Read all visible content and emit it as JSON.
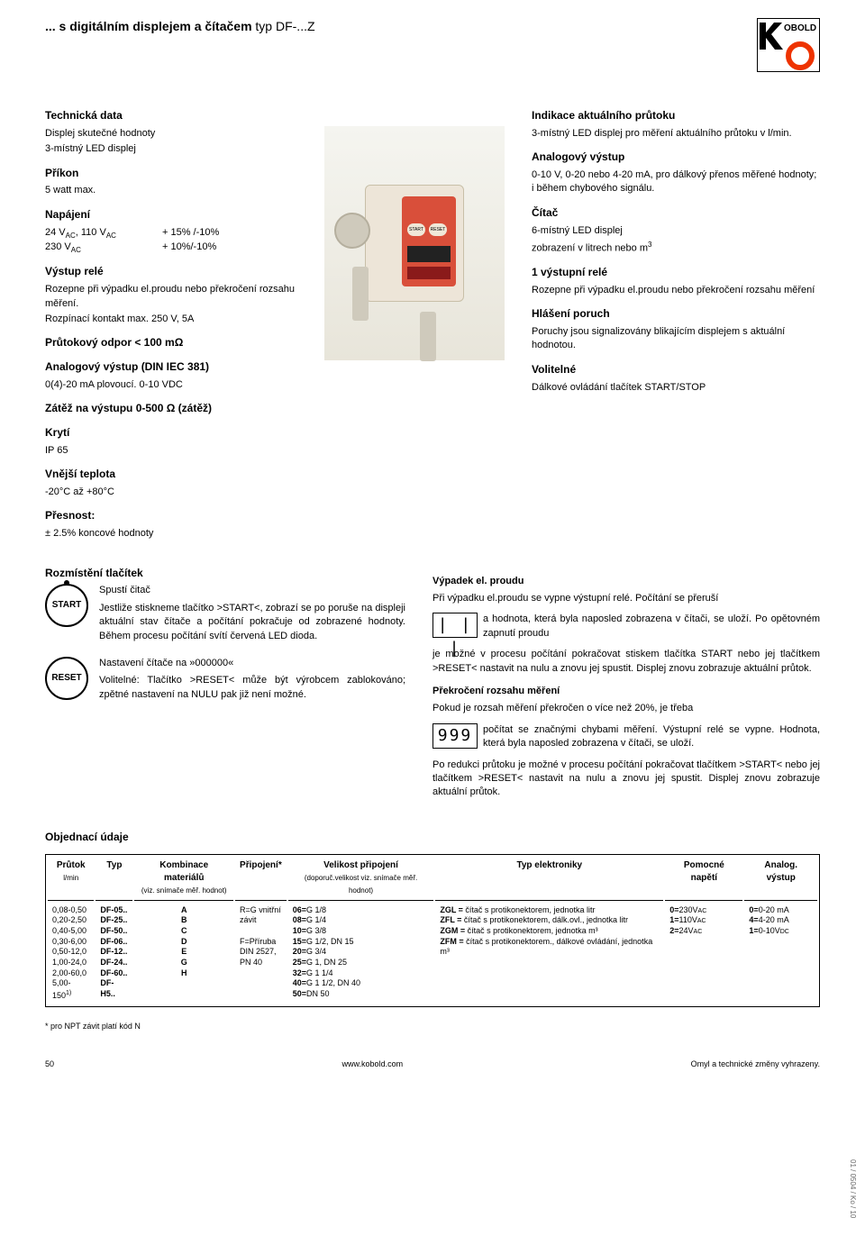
{
  "header": {
    "title_prefix": "... s digitálním displejem a čítačem",
    "title_thin": " typ DF-...Z",
    "logo_text": "OBOLD"
  },
  "tech": {
    "title": "Technická data",
    "display_lbl": "Displej skutečné hodnoty",
    "display_val": "3-místný LED displej",
    "power_lbl": "Příkon",
    "power_val": "5 watt max.",
    "supply_lbl": "Napájení",
    "supply_row1_l": "24 V",
    "supply_row1_sub1": "AC",
    "supply_row1_mid": ", 110 V",
    "supply_row1_sub2": "AC",
    "supply_row1_r": "+ 15% /-10%",
    "supply_row2_l": "230 V",
    "supply_row2_sub": "AC",
    "supply_row2_r": "+ 10%/-10%",
    "relay_lbl": "Výstup relé",
    "relay_txt": "Rozepne při výpadku el.proudu nebo překročení rozsahu měření.",
    "relay_txt2": "Rozpínací kontakt max. 250 V, 5A",
    "res_lbl": "Průtokový odpor < 100 mΩ",
    "analog_lbl": "Analogový výstup (DIN IEC 381)",
    "analog_txt": "0(4)-20 mA plovoucí. 0-10 VDC",
    "load_lbl": "Zátěž na výstupu 0-500 Ω (zátěž)",
    "ip_lbl": "Krytí",
    "ip_val": "IP 65",
    "temp_lbl": "Vnější teplota",
    "temp_val": "-20°C až +80°C",
    "acc_lbl": "Přesnost:",
    "acc_val": "± 2.5% koncové hodnoty"
  },
  "right": {
    "ind_lbl": "Indikace aktuálního průtoku",
    "ind_txt": "3-místný LED displej pro měření aktuálního průtoku v l/min.",
    "aout_lbl": "Analogový výstup",
    "aout_txt": "0-10 V, 0-20 nebo 4-20 mA, pro dálkový přenos měřené hodnoty; i během chybového signálu.",
    "cnt_lbl": "Čítač",
    "cnt_txt1": "6-místný LED displej",
    "cnt_txt2": "zobrazení v litrech nebo m",
    "cnt_sup": "3",
    "relay_lbl": "1 výstupní relé",
    "relay_txt": "Rozepne při výpadku el.proudu nebo překročení rozsahu měření",
    "err_lbl": "Hlášení  poruch",
    "err_txt": "Poruchy jsou signalizovány blikajícím displejem s aktuální hodnotou.",
    "opt_lbl": "Volitelné",
    "opt_txt": "Dálkové ovládání tlačítek START/STOP"
  },
  "buttons": {
    "title": "Rozmístění tlačítek",
    "start_label": "START",
    "start_lead": "Spustí čitač",
    "start_txt": "Jestliže stiskneme tlačítko >START<, zobrazí se po poruše na displeji aktuální stav čítače a počítání pokračuje od zobrazené hodnoty. Během procesu počítání svítí červená LED dioda.",
    "reset_label": "RESET",
    "reset_lead": "Nastavení čítače na »000000«",
    "reset_txt": "Volitelné: Tlačítko >RESET< může být výrobcem zablokováno; zpětné nastavení na NULU pak již není možné."
  },
  "fail": {
    "title": "Výpadek el. proudu",
    "disp1": "| | |",
    "p1a": "Při výpadku el.proudu se vypne výstupní relé. Počítání se přeruší",
    "p1b": "a hodnota, která byla naposled zobrazena v čítači, se uloží. Po opětovném zapnutí proudu",
    "p1c": "je možné v procesu počítání pokračovat stiskem tlačítka START nebo jej tlačítkem >RESET< nastavit na nulu a znovu jej spustit. Displej znovu zobrazuje aktuální průtok.",
    "title2": "Překročení rozsahu měření",
    "disp2": "999",
    "p2a": "Pokud je rozsah měření překročen o více než 20%, je třeba",
    "p2b": "počítat se značnými chybami měření. Výstupní relé se vypne. Hodnota, která byla naposled zobrazena v čítači, se uloží.",
    "p2c": "Po redukci průtoku je možné v procesu počítání pokračovat tlačítkem >START< nebo jej tlačítkem >RESET< nastavit na nulu a znovu jej spustit. Displej znovu zobrazuje aktuální průtok."
  },
  "order": {
    "title": "Objednací údaje",
    "headers": {
      "flow": "Průtok",
      "flow_sub": "l/min",
      "type": "Typ",
      "comb": "Kombinace materiálů",
      "comb_sub": "(viz. snímače měř. hodnot)",
      "conn": "Připojení*",
      "size": "Velikost připojení",
      "size_sub": "(doporuč.velikost viz. snímače měř. hodnot)",
      "elec": "Typ elektroniky",
      "aux": "Pomocné napětí",
      "aout": "Analog. výstup"
    },
    "flow": [
      "0,08-0,50",
      "0,20-2,50",
      "0,40-5,00",
      "0,30-6,00",
      "0,50-12,0",
      "1,00-24,0",
      "2,00-60,0",
      "5,00-150"
    ],
    "flow_last_sup": "1)",
    "type": [
      "DF-05..",
      "DF-25..",
      "DF-50..",
      "DF-06..",
      "DF-12..",
      "DF-24..",
      "DF-60..",
      "DF-H5.."
    ],
    "comb": [
      "A",
      "B",
      "C",
      "D",
      "E",
      "G",
      "H"
    ],
    "conn": [
      "R=G vnitřní",
      "závit",
      "",
      "F=Příruba",
      "DIN 2527,",
      "PN 40"
    ],
    "size": [
      "06=G 1/8",
      "08=G 1/4",
      "10=G 3/8",
      "15=G 1/2, DN 15",
      "20=G 3/4",
      "25=G 1, DN 25",
      "32=G 1 1/4",
      "40=G 1 1/2, DN 40",
      "50=DN 50"
    ],
    "elec": [
      "ZGL = čítač s protikonektorem, jednotka litr",
      "ZFL = čítač s protikonektorem, dálk.ovl., jednotka litr",
      "ZGM = čítač s protikonektorem, jednotka m³",
      "ZFM = čítač s protikonektorem., dálkové ovládání, jednotka m³"
    ],
    "aux": [
      "0=230V",
      "1=110V",
      "2=24V"
    ],
    "aux_sub": "AC",
    "aout": [
      "0=0-20 mA",
      "4=4-20 mA",
      "1=0-10V"
    ],
    "aout_sub": "DC"
  },
  "footnote": "* pro NPT závit platí kód N",
  "footer": {
    "page": "50",
    "url": "www.kobold.com",
    "note": "Omyl a technické změny vyhrazeny."
  },
  "side": "01 / 0504 / Ko / 10"
}
